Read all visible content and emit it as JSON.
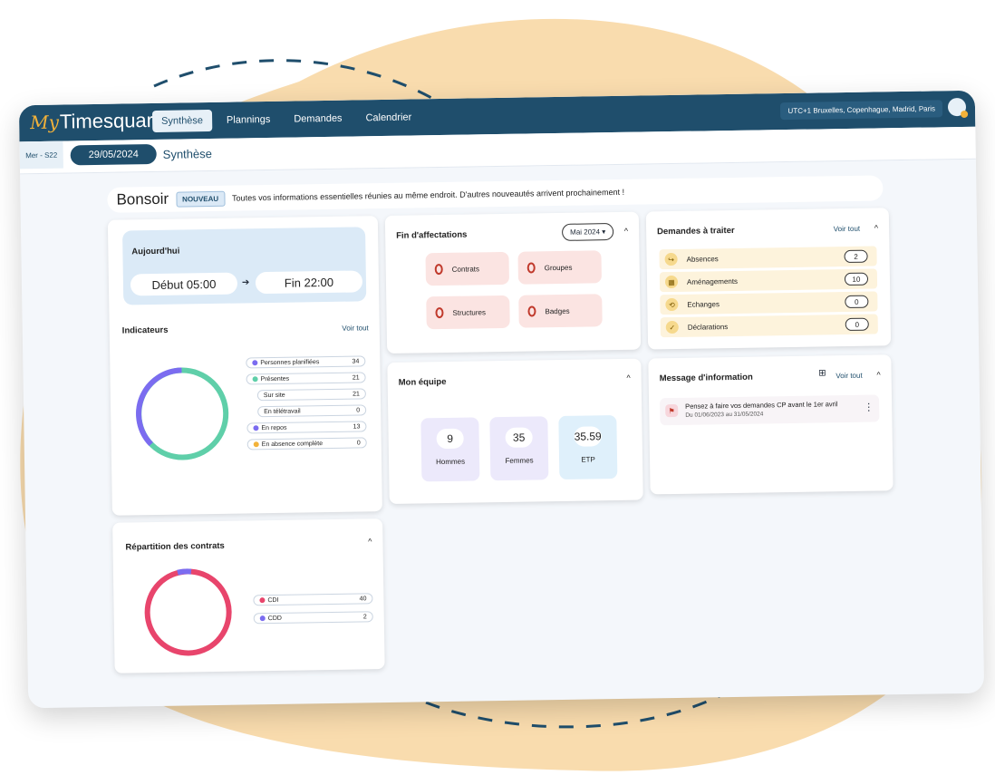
{
  "brand": {
    "my": "My",
    "name": "Timesquare"
  },
  "nav": [
    "Synthèse",
    "Plannings",
    "Demandes",
    "Calendrier"
  ],
  "timezone": "UTC+1 Bruxelles, Copenhague, Madrid, Paris",
  "week": "Mer - S22",
  "date": "29/05/2024",
  "page_title": "Synthèse",
  "greeting": {
    "hello": "Bonsoir",
    "badge": "NOUVEAU",
    "message": "Toutes vos informations essentielles réunies au même endroit. D'autres nouveautés arrivent prochainement !"
  },
  "today": {
    "title": "Aujourd'hui",
    "start": "Début 05:00",
    "arrow": "➔",
    "end": "Fin 22:00"
  },
  "indicators": {
    "title": "Indicateurs",
    "link": "Voir tout",
    "rows": [
      {
        "label": "Personnes planifiées",
        "value": "34",
        "color": "#7b6cf0"
      },
      {
        "label": "Présentes",
        "value": "21",
        "color": "#5fcfa9"
      },
      {
        "label": "Sur site",
        "value": "21",
        "color": ""
      },
      {
        "label": "En télétravail",
        "value": "0",
        "color": ""
      },
      {
        "label": "En repos",
        "value": "13",
        "color": "#7b6cf0"
      },
      {
        "label": "En absence complète",
        "value": "0",
        "color": "#f2b23a"
      }
    ]
  },
  "contracts": {
    "title": "Répartition des contrats",
    "chevron": "^",
    "rows": [
      {
        "label": "CDI",
        "value": "40",
        "color": "#e8456c"
      },
      {
        "label": "CDD",
        "value": "2",
        "color": "#7b6cf0"
      }
    ]
  },
  "end_assign": {
    "title": "Fin d'affectations",
    "month": "Mai 2024",
    "chevron": "^",
    "tiles": [
      {
        "label": "Contrats"
      },
      {
        "label": "Groupes"
      },
      {
        "label": "Structures"
      },
      {
        "label": "Badges"
      }
    ]
  },
  "team": {
    "title": "Mon équipe",
    "chevron": "^",
    "stats": [
      {
        "value": "9",
        "label": "Hommes",
        "bg": "#ece9fb"
      },
      {
        "value": "35",
        "label": "Femmes",
        "bg": "#ece9fb"
      },
      {
        "value": "35.59",
        "label": "ETP",
        "bg": "#dff0fb"
      }
    ]
  },
  "requests": {
    "title": "Demandes à traiter",
    "link": "Voir tout",
    "chevron": "^",
    "rows": [
      {
        "label": "Absences",
        "value": "2",
        "icon": "↪"
      },
      {
        "label": "Aménagements",
        "value": "10",
        "icon": "▦"
      },
      {
        "label": "Echanges",
        "value": "0",
        "icon": "⟲"
      },
      {
        "label": "Déclarations",
        "value": "0",
        "icon": "✓"
      }
    ]
  },
  "messages": {
    "title": "Message d'information",
    "link": "Voir tout",
    "chevron": "^",
    "item_title": "Pensez à faire vos demandes CP avant le 1er avril",
    "item_dates": "Du 01/06/2023 au 31/05/2024",
    "menu": "⋮"
  }
}
